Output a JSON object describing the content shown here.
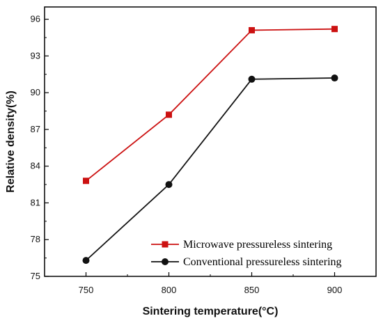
{
  "chart_data": {
    "type": "line",
    "xlabel": "Sintering temperature(°C)",
    "ylabel": "Relative density(%)",
    "x": [
      750,
      800,
      850,
      900
    ],
    "x_tick_labels": [
      "750",
      "800",
      "850",
      "900"
    ],
    "xlim": [
      725,
      925
    ],
    "ylim": [
      75,
      97
    ],
    "y_ticks": [
      75,
      78,
      81,
      84,
      87,
      90,
      93,
      96
    ],
    "y_tick_labels": [
      "75",
      "78",
      "81",
      "84",
      "87",
      "90",
      "93",
      "96"
    ],
    "legend_position": "bottom-right",
    "grid": false,
    "series": [
      {
        "name": "Microwave pressureless sintering",
        "color": "#cc1111",
        "marker": "square",
        "values": [
          82.8,
          88.2,
          95.1,
          95.2
        ]
      },
      {
        "name": "Conventional pressureless sintering",
        "color": "#111111",
        "marker": "circle",
        "values": [
          76.3,
          82.5,
          91.1,
          91.2
        ]
      }
    ]
  }
}
